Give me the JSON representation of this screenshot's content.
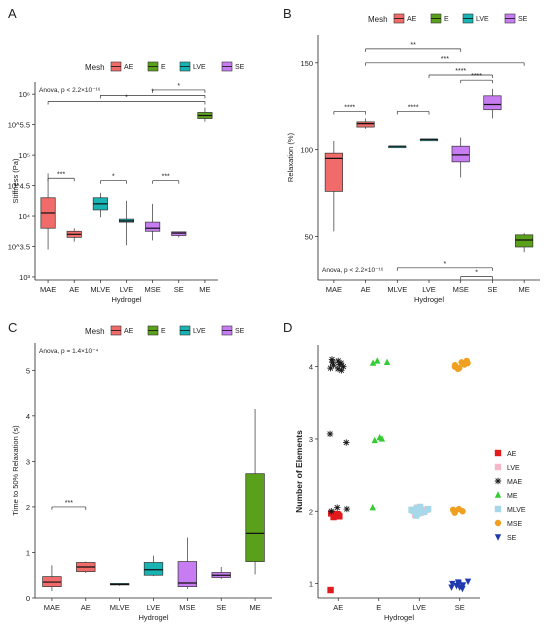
{
  "colors": {
    "AE": "#f26b6b",
    "E": "#5aa01a",
    "LVE": "#19b3b3",
    "SE": "#c77cf2",
    "MAE": "#1a1a1a",
    "ME": "#33cc33",
    "MLVE": "#a6d8ea",
    "MSE": "#f0a020",
    "SE_scatter": "#1f3ab0",
    "LVE_scatter": "#f5b8c8",
    "AE_scatter": "#e31a1c"
  },
  "chart_data": [
    {
      "panel": "A",
      "type": "box",
      "title": "",
      "xlabel": "Hydrogel",
      "ylabel": "Stiffness (Pa)",
      "scale": "log10",
      "ylim": [
        2.95,
        6.2
      ],
      "yticks": [
        "10³",
        "10^3.5",
        "10⁴",
        "10^4.5",
        "10⁵",
        "10^5.5",
        "10⁶"
      ],
      "legend_title": "Mesh",
      "legend": [
        "AE",
        "E",
        "LVE",
        "SE"
      ],
      "annotation": "Anova, p < 2.2×10⁻¹⁶",
      "categories": [
        "MAE",
        "AE",
        "MLVE",
        "LVE",
        "MSE",
        "SE",
        "ME"
      ],
      "mesh": [
        "AE",
        "AE",
        "LVE",
        "LVE",
        "SE",
        "SE",
        "E"
      ],
      "boxes": [
        {
          "min": 3.45,
          "q1": 3.8,
          "median": 4.05,
          "q3": 4.3,
          "max": 4.7
        },
        {
          "min": 3.58,
          "q1": 3.65,
          "median": 3.7,
          "q3": 3.75,
          "max": 3.8
        },
        {
          "min": 3.98,
          "q1": 4.1,
          "median": 4.2,
          "q3": 4.3,
          "max": 4.38
        },
        {
          "min": 3.52,
          "q1": 3.9,
          "median": 3.92,
          "q3": 3.95,
          "max": 4.25
        },
        {
          "min": 3.6,
          "q1": 3.75,
          "median": 3.8,
          "q3": 3.9,
          "max": 4.2
        },
        {
          "min": 3.65,
          "q1": 3.68,
          "median": 3.72,
          "q3": 3.74,
          "max": 3.74
        },
        {
          "min": 5.55,
          "q1": 5.6,
          "median": 5.65,
          "q3": 5.7,
          "max": 5.78
        }
      ],
      "brackets": [
        {
          "from": 0,
          "to": 1,
          "y": 4.62,
          "label": "***"
        },
        {
          "from": 2,
          "to": 3,
          "y": 4.58,
          "label": "*"
        },
        {
          "from": 4,
          "to": 5,
          "y": 4.58,
          "label": "***"
        },
        {
          "from": 0,
          "to": 6,
          "y": 5.88,
          "label": "*"
        },
        {
          "from": 2,
          "to": 6,
          "y": 5.98,
          "label": "*"
        },
        {
          "from": 4,
          "to": 6,
          "y": 6.07,
          "label": "*"
        }
      ]
    },
    {
      "panel": "B",
      "type": "box",
      "title": "",
      "xlabel": "Hydrogel",
      "ylabel": "Relaxation (%)",
      "scale": "linear",
      "ylim": [
        25,
        166
      ],
      "yticks": [
        50,
        100,
        150
      ],
      "legend_title": "Mesh",
      "legend": [
        "AE",
        "E",
        "LVE",
        "SE"
      ],
      "annotation": "Anova, p < 2.2×10⁻¹⁶",
      "categories": [
        "MAE",
        "AE",
        "MLVE",
        "LVE",
        "MSE",
        "SE",
        "ME"
      ],
      "mesh": [
        "AE",
        "AE",
        "LVE",
        "LVE",
        "SE",
        "SE",
        "E"
      ],
      "boxes": [
        {
          "min": 53,
          "q1": 76,
          "median": 95,
          "q3": 98,
          "max": 105
        },
        {
          "min": 112,
          "q1": 113,
          "median": 115,
          "q3": 116,
          "max": 118
        },
        {
          "min": 101,
          "q1": 102,
          "median": 102,
          "q3": 102,
          "max": 102
        },
        {
          "min": 106,
          "q1": 106,
          "median": 106,
          "q3": 106,
          "max": 106
        },
        {
          "min": 84,
          "q1": 93,
          "median": 97,
          "q3": 102,
          "max": 107
        },
        {
          "min": 118,
          "q1": 123,
          "median": 126,
          "q3": 131,
          "max": 135
        },
        {
          "min": 41,
          "q1": 44,
          "median": 48,
          "q3": 51,
          "max": 52
        }
      ],
      "brackets": [
        {
          "from": 0,
          "to": 1,
          "y": 122,
          "label": "****"
        },
        {
          "from": 2,
          "to": 3,
          "y": 122,
          "label": "****"
        },
        {
          "from": 4,
          "to": 5,
          "y": 140,
          "label": "****"
        },
        {
          "from": 1,
          "to": 4,
          "y": 158,
          "label": "**"
        },
        {
          "from": 1,
          "to": 6,
          "y": 150,
          "label": "***"
        },
        {
          "from": 3,
          "to": 5,
          "y": 143,
          "label": "****"
        },
        {
          "from": 2,
          "to": 5,
          "y": 32,
          "label": "*"
        },
        {
          "from": 4,
          "to": 5,
          "y": 27,
          "label": "*"
        }
      ]
    },
    {
      "panel": "C",
      "type": "box",
      "title": "",
      "xlabel": "Hydrogel",
      "ylabel": "Time to 50% Relaxation (s)",
      "scale": "linear",
      "ylim": [
        0,
        5.6
      ],
      "yticks": [
        0,
        1,
        2,
        3,
        4,
        5
      ],
      "legend_title": "Mesh",
      "legend": [
        "AE",
        "E",
        "LVE",
        "SE"
      ],
      "annotation": "Anova, p = 1.4×10⁻⁴",
      "categories": [
        "MAE",
        "AE",
        "MLVE",
        "LVE",
        "MSE",
        "SE",
        "ME"
      ],
      "mesh": [
        "AE",
        "AE",
        "LVE",
        "LVE",
        "SE",
        "SE",
        "E"
      ],
      "boxes": [
        {
          "min": 0.15,
          "q1": 0.25,
          "median": 0.35,
          "q3": 0.47,
          "max": 0.72
        },
        {
          "min": 0.55,
          "q1": 0.58,
          "median": 0.68,
          "q3": 0.78,
          "max": 0.8
        },
        {
          "min": 0.27,
          "q1": 0.29,
          "median": 0.3,
          "q3": 0.32,
          "max": 0.33
        },
        {
          "min": 0.48,
          "q1": 0.5,
          "median": 0.62,
          "q3": 0.78,
          "max": 0.93
        },
        {
          "min": 0.2,
          "q1": 0.25,
          "median": 0.33,
          "q3": 0.8,
          "max": 1.33
        },
        {
          "min": 0.42,
          "q1": 0.45,
          "median": 0.5,
          "q3": 0.56,
          "max": 0.68
        },
        {
          "min": 0.52,
          "q1": 0.8,
          "median": 1.42,
          "q3": 2.73,
          "max": 4.15
        }
      ],
      "brackets": [
        {
          "from": 0,
          "to": 1,
          "y": 2.0,
          "label": "***"
        }
      ]
    },
    {
      "panel": "D",
      "type": "scatter",
      "title": "",
      "xlabel": "Hydrogel",
      "ylabel": "Number of Elements",
      "categories": [
        "AE",
        "E",
        "LVE",
        "SE"
      ],
      "ylim": [
        0.8,
        4.3
      ],
      "yticks": [
        1,
        2,
        3,
        4
      ],
      "series": [
        {
          "name": "AE",
          "shape": "square",
          "color": "#e31a1c",
          "points": [
            [
              0,
              1.95
            ],
            [
              0,
              1.93
            ],
            [
              0,
              1.97
            ],
            [
              0,
              1.92
            ],
            [
              0,
              1.96
            ],
            [
              0,
              1.94
            ],
            [
              0,
              0.91
            ]
          ]
        },
        {
          "name": "LVE",
          "shape": "square",
          "color": "#f5b8c8",
          "points": [
            [
              2,
              2.02
            ],
            [
              2,
              1.98
            ],
            [
              2,
              2.05
            ],
            [
              2,
              1.95
            ]
          ]
        },
        {
          "name": "MAE",
          "shape": "star",
          "color": "#1a1a1a",
          "points": [
            [
              0,
              4.0
            ],
            [
              0,
              4.05
            ],
            [
              0,
              3.98
            ],
            [
              0,
              4.08
            ],
            [
              0,
              4.02
            ],
            [
              0,
              3.95
            ],
            [
              0,
              4.1
            ],
            [
              0,
              4.03
            ],
            [
              0,
              3.97
            ],
            [
              0,
              4.06
            ],
            [
              0,
              3.07
            ],
            [
              0,
              2.95
            ],
            [
              0,
              2.03
            ],
            [
              0,
              2.0
            ],
            [
              0,
              2.05
            ]
          ]
        },
        {
          "name": "ME",
          "shape": "triangle",
          "color": "#33cc33",
          "points": [
            [
              1,
              4.06
            ],
            [
              1,
              4.05
            ],
            [
              1,
              4.08
            ],
            [
              1,
              3.02
            ],
            [
              1,
              3.0
            ],
            [
              1,
              2.98
            ],
            [
              1,
              2.05
            ]
          ]
        },
        {
          "name": "MLVE",
          "shape": "square",
          "color": "#a6d8ea",
          "points": [
            [
              2,
              2.03
            ],
            [
              2,
              1.97
            ],
            [
              2,
              2.0
            ],
            [
              2,
              2.06
            ],
            [
              2,
              1.94
            ],
            [
              2,
              2.01
            ],
            [
              2,
              1.99
            ],
            [
              2,
              2.04
            ],
            [
              2,
              1.96
            ],
            [
              2,
              2.02
            ]
          ]
        },
        {
          "name": "MSE",
          "shape": "circle",
          "color": "#f0a020",
          "points": [
            [
              3,
              4.05
            ],
            [
              3,
              4.02
            ],
            [
              3,
              4.08
            ],
            [
              3,
              3.98
            ],
            [
              3,
              4.0
            ],
            [
              3,
              4.06
            ],
            [
              3,
              3.97
            ],
            [
              3,
              4.03
            ],
            [
              3,
              2.0
            ],
            [
              3,
              2.02
            ],
            [
              3,
              1.98
            ],
            [
              3,
              2.03
            ]
          ]
        },
        {
          "name": "SE",
          "shape": "triangle-down",
          "color": "#1f3ab0",
          "points": [
            [
              3,
              1.0
            ],
            [
              3,
              0.95
            ],
            [
              3,
              1.02
            ],
            [
              3,
              0.98
            ],
            [
              3,
              0.93
            ],
            [
              3,
              1.03
            ],
            [
              3,
              0.97
            ],
            [
              3,
              1.01
            ],
            [
              3,
              0.95
            ],
            [
              3,
              0.99
            ]
          ]
        }
      ],
      "legend": [
        "AE",
        "LVE",
        "MAE",
        "ME",
        "MLVE",
        "MSE",
        "SE"
      ]
    }
  ],
  "panel_labels": [
    "A",
    "B",
    "C",
    "D"
  ]
}
